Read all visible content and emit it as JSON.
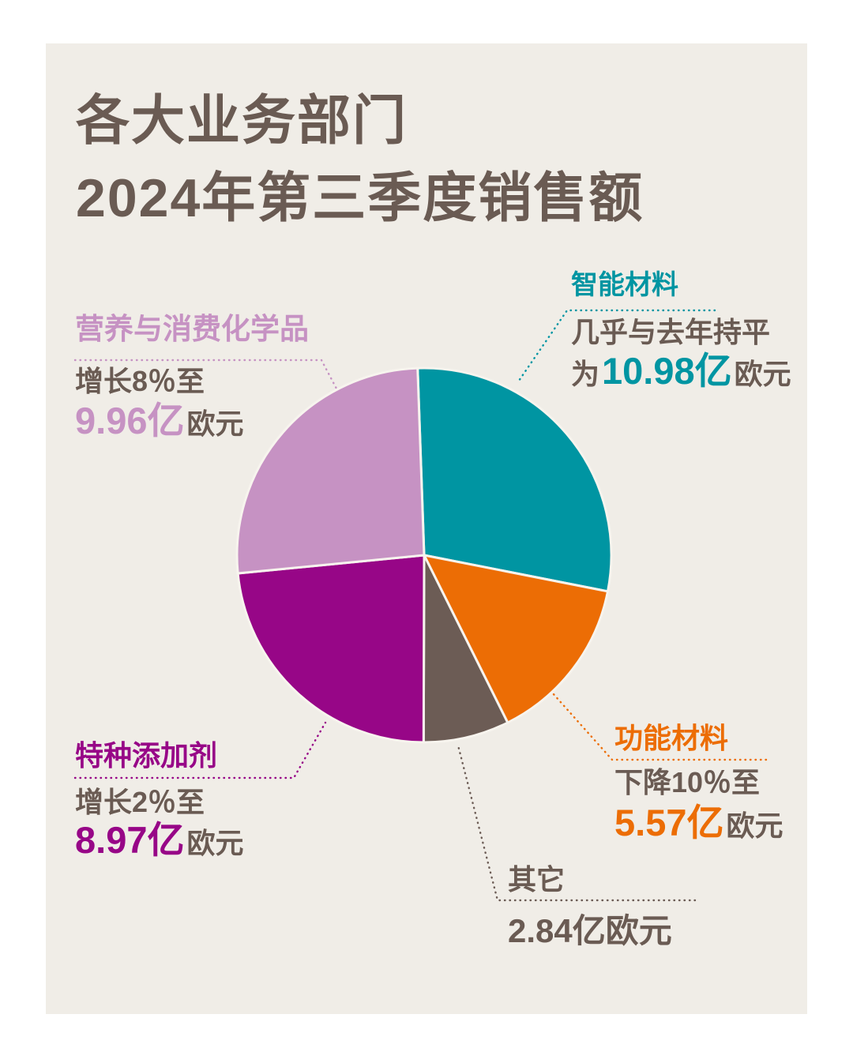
{
  "title": {
    "line1": "各大业务部门",
    "line2": "2024年第三季度销售额"
  },
  "colors": {
    "page_bg": "#FFFFFF",
    "card_bg": "#F0EDE7",
    "text_dark": "#6A5B53",
    "slice_gap": "#F7F4EE"
  },
  "labels": {
    "nutrition": {
      "title": "营养与消费化学品",
      "desc": "增长8％至",
      "value_num": "9.96亿",
      "value_suffix": "欧元"
    },
    "smart": {
      "title": "智能材料",
      "desc": "几乎与去年持平",
      "value_prefix": "为",
      "value_num": "10.98亿",
      "value_suffix": "欧元"
    },
    "specialty": {
      "title": "特种添加剂",
      "desc": "增长2％至",
      "value_num": "8.97亿",
      "value_suffix": "欧元"
    },
    "functional": {
      "title": "功能材料",
      "desc": "下降10％至",
      "value_num": "5.57亿",
      "value_suffix": "欧元"
    },
    "others": {
      "title": "其它",
      "value_text": "2.84亿欧元"
    }
  },
  "chart_data": {
    "type": "pie",
    "title": "各大业务部门2024年第三季度销售额",
    "unit": "亿欧元",
    "start_angle_deg": -2,
    "direction": "clockwise",
    "legend_position": "callout-labels",
    "slices": [
      {
        "key": "smart",
        "label": "智能材料",
        "value": 10.98,
        "color": "#0095A2",
        "note": "几乎与去年持平"
      },
      {
        "key": "functional",
        "label": "功能材料",
        "value": 5.57,
        "color": "#EC6D05",
        "note": "下降10％"
      },
      {
        "key": "others",
        "label": "其它",
        "value": 2.84,
        "color": "#6C5C55",
        "note": ""
      },
      {
        "key": "specialty",
        "label": "特种添加剂",
        "value": 8.97,
        "color": "#970687",
        "note": "增长2％"
      },
      {
        "key": "nutrition",
        "label": "营养与消费化学品",
        "value": 9.96,
        "color": "#C692C3",
        "note": "增长8％"
      }
    ]
  }
}
